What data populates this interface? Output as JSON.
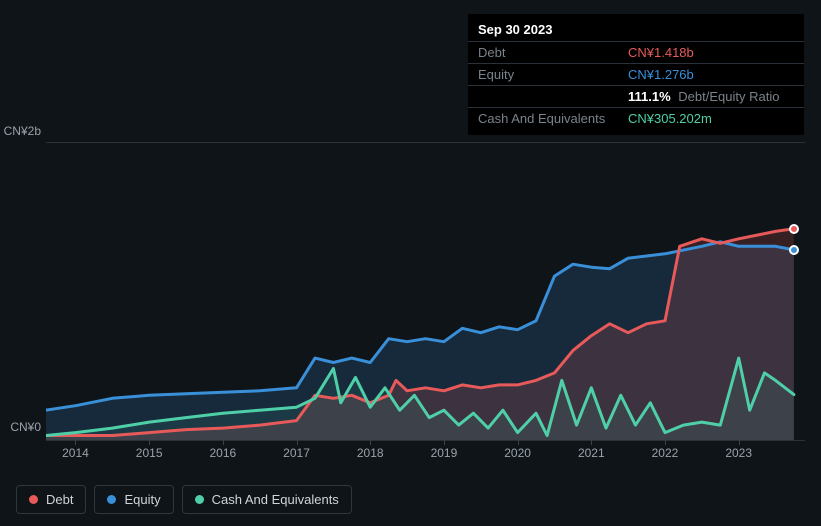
{
  "tooltip": {
    "date": "Sep 30 2023",
    "rows": {
      "debt": {
        "label": "Debt",
        "value": "CN¥1.418b",
        "color": "#e85a5a"
      },
      "equity": {
        "label": "Equity",
        "value": "CN¥1.276b",
        "color": "#3a8fd9"
      },
      "ratio": {
        "value": "111.1%",
        "label": "Debt/Equity Ratio"
      },
      "cash": {
        "label": "Cash And Equivalents",
        "value": "CN¥305.202m",
        "color": "#4fcfa8"
      }
    }
  },
  "chart": {
    "background": "#0f1419",
    "grid_color": "#2a3138",
    "text_color": "#9aa2aa",
    "y_top_label": "CN¥2b",
    "y_bottom_label": "CN¥0",
    "y_max": 2.0,
    "y_min": 0.0,
    "x_min": 2013.6,
    "x_max": 2023.9,
    "x_ticks": [
      "2014",
      "2015",
      "2016",
      "2017",
      "2018",
      "2019",
      "2020",
      "2021",
      "2022",
      "2023"
    ],
    "line_width": 3,
    "series": {
      "debt": {
        "label": "Debt",
        "color": "#e85a5a",
        "fill": "rgba(232,90,90,0.18)",
        "data": [
          [
            2013.6,
            0.03
          ],
          [
            2014.0,
            0.03
          ],
          [
            2014.5,
            0.03
          ],
          [
            2015.0,
            0.05
          ],
          [
            2015.5,
            0.07
          ],
          [
            2016.0,
            0.08
          ],
          [
            2016.5,
            0.1
          ],
          [
            2017.0,
            0.13
          ],
          [
            2017.25,
            0.3
          ],
          [
            2017.5,
            0.28
          ],
          [
            2017.75,
            0.3
          ],
          [
            2018.0,
            0.25
          ],
          [
            2018.25,
            0.3
          ],
          [
            2018.35,
            0.4
          ],
          [
            2018.5,
            0.33
          ],
          [
            2018.75,
            0.35
          ],
          [
            2019.0,
            0.33
          ],
          [
            2019.25,
            0.37
          ],
          [
            2019.5,
            0.35
          ],
          [
            2019.75,
            0.37
          ],
          [
            2020.0,
            0.37
          ],
          [
            2020.25,
            0.4
          ],
          [
            2020.5,
            0.45
          ],
          [
            2020.75,
            0.6
          ],
          [
            2021.0,
            0.7
          ],
          [
            2021.25,
            0.78
          ],
          [
            2021.5,
            0.72
          ],
          [
            2021.75,
            0.78
          ],
          [
            2022.0,
            0.8
          ],
          [
            2022.2,
            1.3
          ],
          [
            2022.5,
            1.35
          ],
          [
            2022.75,
            1.32
          ],
          [
            2023.0,
            1.35
          ],
          [
            2023.5,
            1.4
          ],
          [
            2023.75,
            1.418
          ]
        ]
      },
      "equity": {
        "label": "Equity",
        "color": "#3a8fd9",
        "fill": "rgba(58,143,217,0.18)",
        "data": [
          [
            2013.6,
            0.2
          ],
          [
            2014.0,
            0.23
          ],
          [
            2014.5,
            0.28
          ],
          [
            2015.0,
            0.3
          ],
          [
            2015.5,
            0.31
          ],
          [
            2016.0,
            0.32
          ],
          [
            2016.5,
            0.33
          ],
          [
            2017.0,
            0.35
          ],
          [
            2017.25,
            0.55
          ],
          [
            2017.5,
            0.52
          ],
          [
            2017.75,
            0.55
          ],
          [
            2018.0,
            0.52
          ],
          [
            2018.25,
            0.68
          ],
          [
            2018.5,
            0.66
          ],
          [
            2018.75,
            0.68
          ],
          [
            2019.0,
            0.66
          ],
          [
            2019.25,
            0.75
          ],
          [
            2019.5,
            0.72
          ],
          [
            2019.75,
            0.76
          ],
          [
            2020.0,
            0.74
          ],
          [
            2020.25,
            0.8
          ],
          [
            2020.5,
            1.1
          ],
          [
            2020.75,
            1.18
          ],
          [
            2021.0,
            1.16
          ],
          [
            2021.25,
            1.15
          ],
          [
            2021.5,
            1.22
          ],
          [
            2022.0,
            1.25
          ],
          [
            2022.5,
            1.3
          ],
          [
            2022.75,
            1.33
          ],
          [
            2023.0,
            1.3
          ],
          [
            2023.5,
            1.3
          ],
          [
            2023.75,
            1.276
          ]
        ]
      },
      "cash": {
        "label": "Cash And Equivalents",
        "color": "#4fcfa8",
        "fill": "rgba(79,207,168,0.10)",
        "data": [
          [
            2013.6,
            0.03
          ],
          [
            2014.0,
            0.05
          ],
          [
            2014.5,
            0.08
          ],
          [
            2015.0,
            0.12
          ],
          [
            2015.5,
            0.15
          ],
          [
            2016.0,
            0.18
          ],
          [
            2016.5,
            0.2
          ],
          [
            2017.0,
            0.22
          ],
          [
            2017.25,
            0.28
          ],
          [
            2017.5,
            0.48
          ],
          [
            2017.6,
            0.25
          ],
          [
            2017.8,
            0.42
          ],
          [
            2018.0,
            0.22
          ],
          [
            2018.2,
            0.35
          ],
          [
            2018.4,
            0.2
          ],
          [
            2018.6,
            0.3
          ],
          [
            2018.8,
            0.15
          ],
          [
            2019.0,
            0.2
          ],
          [
            2019.2,
            0.1
          ],
          [
            2019.4,
            0.18
          ],
          [
            2019.6,
            0.08
          ],
          [
            2019.8,
            0.2
          ],
          [
            2020.0,
            0.05
          ],
          [
            2020.25,
            0.18
          ],
          [
            2020.4,
            0.03
          ],
          [
            2020.6,
            0.4
          ],
          [
            2020.8,
            0.1
          ],
          [
            2021.0,
            0.35
          ],
          [
            2021.2,
            0.08
          ],
          [
            2021.4,
            0.3
          ],
          [
            2021.6,
            0.1
          ],
          [
            2021.8,
            0.25
          ],
          [
            2022.0,
            0.05
          ],
          [
            2022.25,
            0.1
          ],
          [
            2022.5,
            0.12
          ],
          [
            2022.75,
            0.1
          ],
          [
            2023.0,
            0.55
          ],
          [
            2023.15,
            0.2
          ],
          [
            2023.35,
            0.45
          ],
          [
            2023.5,
            0.4
          ],
          [
            2023.75,
            0.305
          ]
        ]
      }
    },
    "legend_order": [
      "debt",
      "equity",
      "cash"
    ]
  }
}
